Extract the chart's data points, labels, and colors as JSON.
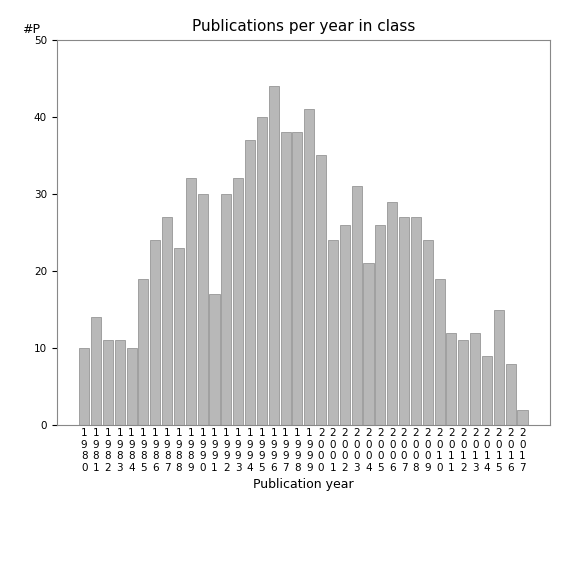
{
  "title": "Publications per year in class",
  "xlabel": "Publication year",
  "ylabel": "#P",
  "years": [
    "1980",
    "1981",
    "1982",
    "1983",
    "1984",
    "1985",
    "1986",
    "1987",
    "1988",
    "1989",
    "1990",
    "1991",
    "1992",
    "1993",
    "1994",
    "1995",
    "1996",
    "1997",
    "1998",
    "1999",
    "2000",
    "2001",
    "2002",
    "2003",
    "2004",
    "2005",
    "2006",
    "2007",
    "2008",
    "2009",
    "2010",
    "2011",
    "2012",
    "2013",
    "2014",
    "2015",
    "2016",
    "2017"
  ],
  "values": [
    10,
    14,
    11,
    11,
    10,
    19,
    24,
    27,
    23,
    32,
    30,
    17,
    30,
    32,
    37,
    40,
    44,
    38,
    38,
    41,
    35,
    24,
    26,
    31,
    21,
    26,
    29,
    27,
    27,
    24,
    19,
    12,
    11,
    12,
    9,
    15,
    8,
    2
  ],
  "bar_color": "#b8b8b8",
  "bar_edge_color": "#888888",
  "ylim": [
    0,
    50
  ],
  "yticks": [
    0,
    10,
    20,
    30,
    40,
    50
  ],
  "background_color": "#ffffff",
  "title_fontsize": 11,
  "axis_label_fontsize": 9,
  "tick_fontsize": 7.5
}
